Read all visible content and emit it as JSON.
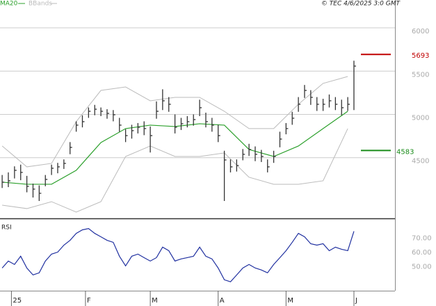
{
  "chart_data": {
    "type": "ohlc",
    "copyright": "© TEC 4/6/2025 3:0 GMT",
    "legend": [
      {
        "name": "MA20",
        "color": "#2ca02c"
      },
      {
        "name": "BBands",
        "color": "#bbbbbb"
      }
    ],
    "x": [
      0,
      2,
      4,
      6,
      8,
      10,
      12,
      14,
      16,
      18,
      20,
      22,
      24,
      26,
      28,
      30,
      32,
      34,
      36,
      38,
      40,
      42,
      44,
      46,
      48,
      50,
      52,
      54,
      56,
      58,
      60,
      62,
      64,
      66,
      68,
      70,
      72,
      74,
      76,
      78,
      80,
      82,
      84,
      86,
      88,
      90,
      92,
      94,
      96,
      98,
      100,
      102,
      104,
      106,
      108,
      110,
      112,
      114
    ],
    "high": [
      4300,
      4330,
      4400,
      4420,
      4290,
      4200,
      4180,
      4300,
      4420,
      4440,
      4480,
      4680,
      4920,
      4990,
      5080,
      5110,
      5080,
      5060,
      5050,
      4960,
      4830,
      4880,
      4900,
      4920,
      4860,
      5150,
      5290,
      5200,
      5000,
      4960,
      4980,
      5000,
      5170,
      5020,
      4960,
      4880,
      4580,
      4480,
      4480,
      4600,
      4660,
      4630,
      4590,
      4480,
      4580,
      4800,
      4900,
      5030,
      5200,
      5340,
      5280,
      5200,
      5180,
      5230,
      5200,
      5170,
      5200,
      5620
    ],
    "low": [
      4150,
      4160,
      4260,
      4240,
      4100,
      4040,
      4000,
      4170,
      4300,
      4320,
      4370,
      4540,
      4800,
      4850,
      4960,
      4990,
      4980,
      4950,
      4920,
      4800,
      4680,
      4720,
      4780,
      4760,
      4560,
      4950,
      5050,
      5030,
      4780,
      4820,
      4850,
      4870,
      4980,
      4850,
      4800,
      4680,
      4000,
      4330,
      4340,
      4470,
      4520,
      4460,
      4450,
      4330,
      4440,
      4620,
      4770,
      4880,
      5030,
      5190,
      5110,
      5040,
      5040,
      5080,
      5050,
      4990,
      5040,
      5050
    ],
    "close": [
      4217,
      4233,
      4354,
      4330,
      4169,
      4137,
      4089,
      4249,
      4378,
      4394,
      4434,
      4619,
      4876,
      4916,
      5036,
      5060,
      5036,
      5012,
      4996,
      4876,
      4755,
      4812,
      4852,
      4836,
      4755,
      5036,
      5157,
      5117,
      4852,
      4892,
      4916,
      4940,
      5077,
      4916,
      4876,
      4755,
      4474,
      4394,
      4410,
      4539,
      4595,
      4539,
      4514,
      4394,
      4514,
      4715,
      4836,
      4956,
      5117,
      5277,
      5197,
      5117,
      5117,
      5157,
      5117,
      5077,
      5117,
      5558
    ],
    "bar_color": "#333333",
    "ma_x": [
      0,
      8,
      16,
      24,
      32,
      40,
      48,
      56,
      64,
      72,
      80,
      88,
      96,
      104,
      112
    ],
    "ma20": [
      4217,
      4193,
      4193,
      4354,
      4675,
      4836,
      4876,
      4860,
      4892,
      4876,
      4595,
      4514,
      4635,
      4836,
      5036
    ],
    "bb_upper": [
      4635,
      4394,
      4434,
      4916,
      5277,
      5317,
      5157,
      5197,
      5197,
      5036,
      4836,
      4836,
      5117,
      5358,
      5438
    ],
    "bb_lower": [
      3952,
      3912,
      3992,
      3872,
      3992,
      4514,
      4635,
      4514,
      4514,
      4555,
      4274,
      4193,
      4193,
      4233,
      4836
    ],
    "levels": [
      {
        "value": 5693,
        "color": "#c00000"
      },
      {
        "value": 4583,
        "color": "#1a8c1a"
      }
    ],
    "xlim": [
      -0.7,
      127.3
    ],
    "xticks": [
      {
        "value": 3,
        "label": "25"
      },
      {
        "value": 27,
        "label": "F"
      },
      {
        "value": 48,
        "label": "M"
      },
      {
        "value": 70,
        "label": "A"
      },
      {
        "value": 92,
        "label": "M"
      },
      {
        "value": 114,
        "label": "J"
      }
    ],
    "ylim": [
      3807,
      6225
    ],
    "yticks": [
      4500,
      5000,
      5500,
      6000
    ],
    "grid": true,
    "rsi": {
      "label": "RSI",
      "color": "#2030a0",
      "values": [
        49.0,
        53.9,
        51.5,
        57.3,
        49.0,
        44.1,
        45.6,
        53.9,
        58.8,
        60.2,
        65.1,
        68.5,
        73.4,
        75.9,
        76.8,
        73.4,
        71.0,
        68.5,
        67.1,
        57.3,
        50.5,
        57.3,
        58.8,
        56.3,
        53.9,
        56.3,
        63.7,
        61.2,
        53.9,
        55.4,
        56.3,
        57.3,
        63.7,
        57.3,
        55.4,
        49.0,
        40.7,
        39.3,
        44.1,
        49.0,
        51.5,
        49.0,
        47.6,
        45.6,
        51.5,
        56.3,
        61.2,
        67.1,
        73.4,
        71.0,
        66.1,
        65.1,
        66.1,
        61.2,
        63.7,
        62.2,
        61.2,
        74.9
      ],
      "ylim": [
        33,
        83
      ],
      "yticks": [
        {
          "value": 50,
          "label": "50.00"
        },
        {
          "value": 60,
          "label": "60.00"
        },
        {
          "value": 70,
          "label": "70.00"
        }
      ]
    }
  }
}
